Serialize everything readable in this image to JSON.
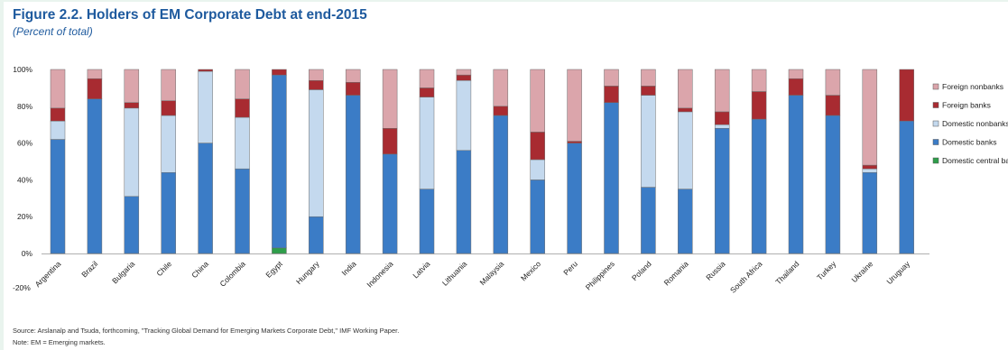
{
  "title": "Figure 2.2. Holders of EM Corporate Debt at end-2015",
  "subtitle": "(Percent of total)",
  "source": "Source: Arslanalp and Tsuda, forthcoming, \"Tracking Global Demand for Emerging Markets Corporate Debt,\" IMF Working Paper.",
  "note": "Note: EM = Emerging markets.",
  "colors": {
    "domestic_central_banks": "#2e9e4a",
    "domestic_banks": "#3b7cc6",
    "domestic_nonbanks": "#c4d9ee",
    "foreign_banks": "#a82b31",
    "foreign_nonbanks": "#dba5ab"
  },
  "chart_data": {
    "type": "bar",
    "stacked": true,
    "categories": [
      "Argentina",
      "Brazil",
      "Bulgaria",
      "Chile",
      "China",
      "Colombia",
      "Egypt",
      "Hungary",
      "India",
      "Indonesia",
      "Latvia",
      "Lithuania",
      "Malaysia",
      "Mexico",
      "Peru",
      "Philippines",
      "Poland",
      "Romania",
      "Russia",
      "South Africa",
      "Thailand",
      "Turkey",
      "Ukraine",
      "Uruguay"
    ],
    "ylim": [
      -20,
      100
    ],
    "yticks": [
      {
        "value": 100,
        "label": "100%"
      },
      {
        "value": 80,
        "label": "80%"
      },
      {
        "value": 60,
        "label": "60%"
      },
      {
        "value": 40,
        "label": "40%"
      },
      {
        "value": 20,
        "label": "20%"
      },
      {
        "value": 0,
        "label": "0%"
      },
      {
        "value": -20,
        "label": "-20%"
      }
    ],
    "legend_position": "right",
    "series": [
      {
        "name": "Domestic central banks",
        "key": "domestic_central_banks",
        "values": [
          0,
          0,
          0,
          0,
          0,
          0,
          3,
          0,
          0,
          0,
          0,
          0,
          0,
          0,
          0,
          0,
          0,
          0,
          0,
          0,
          0,
          0,
          0,
          0
        ]
      },
      {
        "name": "Domestic banks",
        "key": "domestic_banks",
        "values": [
          62,
          84,
          31,
          44,
          60,
          46,
          94,
          20,
          86,
          54,
          35,
          56,
          75,
          40,
          60,
          82,
          36,
          35,
          68,
          73,
          86,
          75,
          44,
          72
        ]
      },
      {
        "name": "Domestic nonbanks",
        "key": "domestic_nonbanks",
        "values": [
          10,
          0,
          48,
          31,
          39,
          28,
          0,
          69,
          0,
          0,
          50,
          38,
          0,
          11,
          0,
          0,
          50,
          42,
          2,
          0,
          0,
          0,
          2,
          0
        ]
      },
      {
        "name": "Foreign banks",
        "key": "foreign_banks",
        "values": [
          7,
          11,
          3,
          8,
          1,
          10,
          3,
          5,
          7,
          14,
          5,
          3,
          5,
          15,
          1,
          9,
          5,
          2,
          7,
          15,
          9,
          11,
          2,
          28
        ]
      },
      {
        "name": "Foreign nonbanks",
        "key": "foreign_nonbanks",
        "values": [
          21,
          5,
          18,
          17,
          0,
          16,
          0,
          6,
          7,
          32,
          10,
          3,
          20,
          34,
          39,
          9,
          9,
          21,
          23,
          12,
          5,
          14,
          52,
          0
        ]
      }
    ],
    "legend": [
      {
        "label": "Foreign nonbanks",
        "key": "foreign_nonbanks"
      },
      {
        "label": "Foreign banks",
        "key": "foreign_banks"
      },
      {
        "label": "Domestic nonbanks",
        "key": "domestic_nonbanks"
      },
      {
        "label": "Domestic banks",
        "key": "domestic_banks"
      },
      {
        "label": "Domestic central ba",
        "key": "domestic_central_banks"
      }
    ]
  }
}
